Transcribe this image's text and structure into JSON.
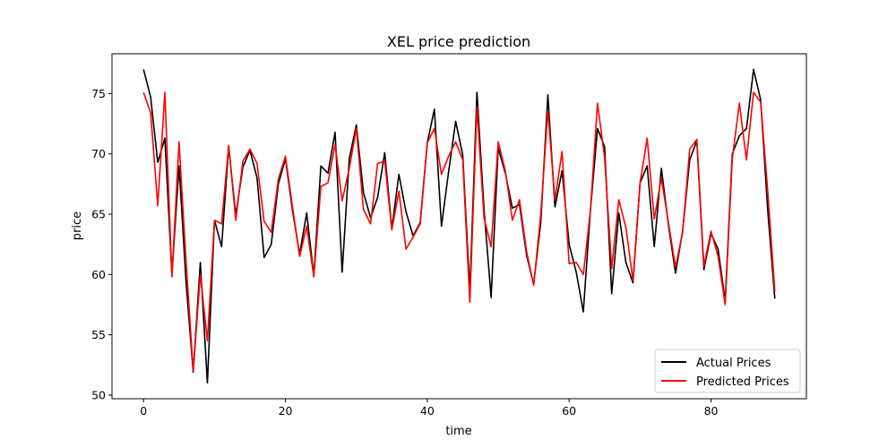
{
  "chart_data": {
    "type": "line",
    "title": "XEL price prediction",
    "xlabel": "time",
    "ylabel": "price",
    "xlim": [
      -4.45,
      93.45
    ],
    "ylim": [
      49.7,
      78.3
    ],
    "xticks": [
      0,
      20,
      40,
      60,
      80
    ],
    "yticks": [
      50,
      55,
      60,
      65,
      70,
      75
    ],
    "grid": false,
    "legend_position": "bottom-right",
    "series": [
      {
        "name": "Actual Prices",
        "color": "#000000",
        "values": [
          77.0,
          74.7,
          69.3,
          71.3,
          60.0,
          69.0,
          59.3,
          51.9,
          61.0,
          51.0,
          64.5,
          62.3,
          70.6,
          64.9,
          68.9,
          70.3,
          68.0,
          61.4,
          62.5,
          67.5,
          69.6,
          65.3,
          61.7,
          65.1,
          59.9,
          69.0,
          68.4,
          71.8,
          60.2,
          69.6,
          72.4,
          66.8,
          64.7,
          66.4,
          70.1,
          63.8,
          68.3,
          65.2,
          63.2,
          64.3,
          70.9,
          73.7,
          64.0,
          68.5,
          72.7,
          69.9,
          58.6,
          75.1,
          65.4,
          58.1,
          70.5,
          68.4,
          65.5,
          65.8,
          61.6,
          59.2,
          64.3,
          74.9,
          65.6,
          68.6,
          62.5,
          60.2,
          56.9,
          65.3,
          72.1,
          70.6,
          58.4,
          65.1,
          61.0,
          59.3,
          67.6,
          69.0,
          62.3,
          68.8,
          64.1,
          60.1,
          63.6,
          69.5,
          71.1,
          60.4,
          63.4,
          62.1,
          57.8,
          70.0,
          71.5,
          72.1,
          77.0,
          74.5,
          65.3,
          58.0
        ]
      },
      {
        "name": "Predicted Prices",
        "color": "#ff0000",
        "values": [
          75.1,
          73.4,
          65.7,
          75.1,
          59.8,
          71.0,
          61.0,
          52.0,
          60.0,
          54.5,
          64.5,
          64.2,
          70.7,
          64.5,
          69.4,
          70.4,
          69.2,
          64.4,
          63.5,
          67.9,
          69.8,
          65.6,
          61.5,
          64.0,
          59.8,
          67.3,
          67.6,
          70.8,
          66.1,
          68.8,
          72.1,
          65.4,
          64.2,
          69.2,
          69.4,
          63.7,
          66.9,
          62.1,
          63.1,
          64.2,
          70.9,
          72.1,
          68.3,
          69.8,
          71.0,
          69.5,
          57.7,
          73.9,
          64.7,
          62.3,
          71.0,
          68.6,
          64.5,
          66.2,
          61.9,
          59.1,
          65.0,
          73.6,
          66.2,
          70.2,
          60.9,
          61.0,
          60.0,
          65.3,
          74.2,
          69.7,
          60.5,
          66.2,
          63.9,
          59.5,
          67.6,
          71.3,
          64.6,
          68.0,
          64.3,
          60.6,
          63.5,
          70.4,
          71.2,
          60.7,
          63.6,
          61.5,
          57.5,
          69.6,
          74.2,
          69.5,
          75.1,
          74.3,
          66.9,
          58.6
        ]
      }
    ]
  }
}
